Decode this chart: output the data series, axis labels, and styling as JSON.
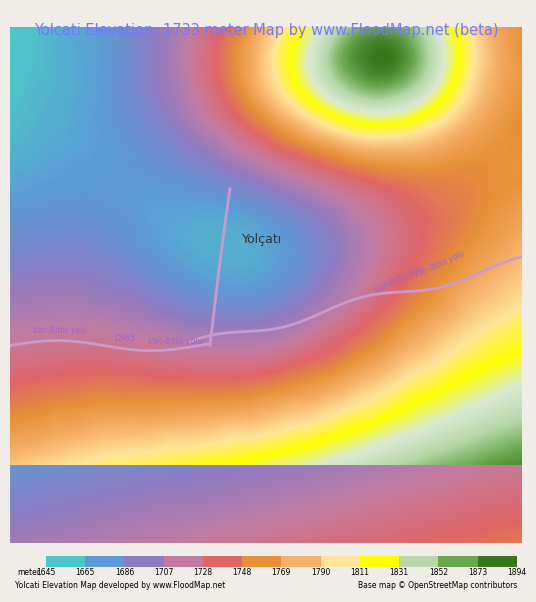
{
  "title": "Yolcati Elevation: 1733 meter Map by www.FloodMap.net (beta)",
  "title_color": "#7777ff",
  "title_fontsize": 10.5,
  "background_color": "#f0ede8",
  "map_bg": "#f0ede8",
  "elevation_min": 1645,
  "elevation_max": 1894,
  "colorbar_ticks": [
    1645,
    1665,
    1686,
    1707,
    1728,
    1748,
    1769,
    1790,
    1811,
    1831,
    1852,
    1873,
    1894
  ],
  "colorbar_colors": [
    "#4dc8c8",
    "#6fa8dc",
    "#8e7cc3",
    "#c27ba0",
    "#e06666",
    "#e69138",
    "#f6b26b",
    "#ffe599",
    "#ffff00",
    "#b6d7a8",
    "#6aa84f",
    "#38761d"
  ],
  "legend_text_left": "Yolcati Elevation Map developed by www.FloodMap.net",
  "legend_text_right": "Base map © OpenStreetMap contributors",
  "place_label": "Yolçatı",
  "road_label1": "Van-Bitlis yolu",
  "road_label2": "D965",
  "road_label3": "Van-Bitlis yolu",
  "road_label4": "Van-Bitlis yolu"
}
